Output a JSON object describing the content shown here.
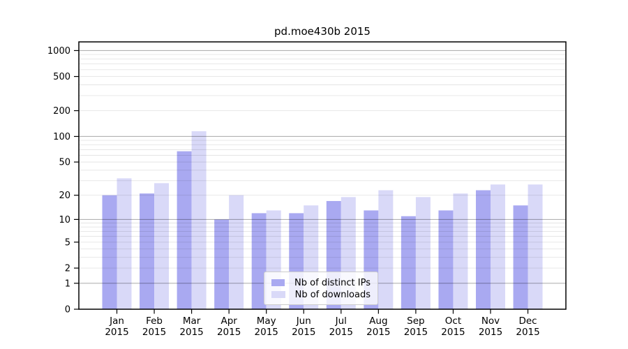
{
  "chart_data": {
    "type": "bar",
    "title": "pd.moe430b 2015",
    "categories": [
      "Jan",
      "Feb",
      "Mar",
      "Apr",
      "May",
      "Jun",
      "Jul",
      "Aug",
      "Sep",
      "Oct",
      "Nov",
      "Dec"
    ],
    "year_label": "2015",
    "series": [
      {
        "name": "Nb of distinct IPs",
        "color": "#a9a9f1",
        "values": [
          20,
          21,
          67,
          10,
          12,
          12,
          17,
          13,
          11,
          13,
          23,
          15
        ]
      },
      {
        "name": "Nb of downloads",
        "color": "#d9d9f8",
        "values": [
          32,
          28,
          115,
          20,
          13,
          15,
          19,
          23,
          19,
          21,
          27,
          27
        ]
      }
    ],
    "yscale": "log10(1+x)",
    "yticks": [
      0,
      1,
      2,
      5,
      10,
      20,
      50,
      100,
      200,
      500,
      1000
    ],
    "ylim": [
      0,
      1280
    ],
    "grid": true,
    "legend_position": "lower-center-inside",
    "colors": {
      "major_grid": "rgba(0,0,0,0.30)",
      "minor_grid": "rgba(0,0,0,0.105)",
      "frame": "#000000"
    }
  }
}
